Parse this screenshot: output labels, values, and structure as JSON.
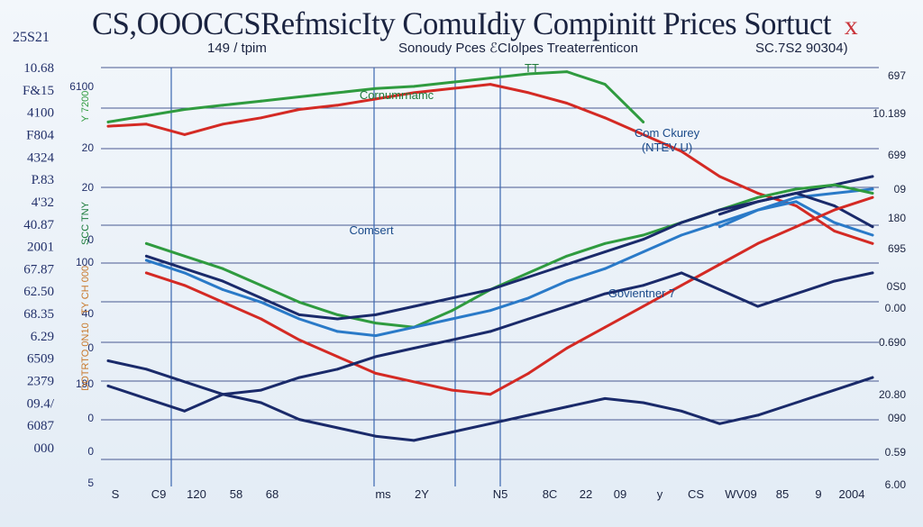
{
  "chart_data": {
    "type": "line",
    "title": "CS,OOOCCSRefmsicIty ComuIdiy Compinitt Prices Sortuct",
    "title_mark": "x",
    "subtitle_left": "149 / tpim",
    "subtitle_center": "Sonoudy Pces ℰCIolpes Treaterrenticon",
    "subtitle_right": "SC.7S2 90304)",
    "corner_label": "25S21",
    "left_ticks": [
      "10.68",
      "F&15",
      "4100",
      "F804",
      "4324",
      "P.83",
      "4'32",
      "40.87",
      "2001",
      "67.87",
      "62.50",
      "68.35",
      "6.29",
      "6509",
      "2379",
      "09.4/",
      "6087",
      "000"
    ],
    "inner_left_ticks": [
      "6100",
      "20",
      "20",
      "0",
      "100",
      "40",
      "0",
      "190",
      "0",
      "0",
      "5"
    ],
    "rotated_labels": [
      "Y 7200",
      "SCC TNY",
      "TY CH 000",
      "DOTRTO 0N10"
    ],
    "right_ticks": [
      "697",
      "10.189",
      "699",
      "09",
      "180",
      "695",
      "0S0",
      "0.00",
      "0.690",
      "20.80",
      "090",
      "0.59",
      "6.00"
    ],
    "bottom_ticks": [
      "S",
      "C9",
      "120",
      "58",
      "68",
      "ms",
      "2Y",
      "N5",
      "8C",
      "22",
      "09",
      "y",
      "CS",
      "WV09",
      "85",
      "9",
      "2004"
    ],
    "annotations": [
      {
        "text": "Cornumrnamc",
        "color": "green"
      },
      {
        "text": "Com Ckurey",
        "color": "blue"
      },
      {
        "text": "(NTEV U)",
        "color": "blue"
      },
      {
        "text": "Comsert",
        "color": "blue"
      },
      {
        "text": "Govientner 7",
        "color": "blue"
      },
      {
        "text": "TT",
        "color": "green"
      }
    ],
    "x": [
      0,
      5,
      10,
      15,
      20,
      25,
      30,
      35,
      40,
      45,
      50,
      55,
      60,
      65,
      70,
      75,
      80,
      85,
      90,
      95,
      100
    ],
    "y_range": [
      0,
      100
    ],
    "series": [
      {
        "name": "Green (upper)",
        "color": "#2f9b3f",
        "values": [
          87,
          88.5,
          90,
          91,
          92,
          93,
          94,
          95,
          95.5,
          96.5,
          97.5,
          98.5,
          99,
          96,
          87,
          null,
          null,
          null,
          null,
          null,
          null
        ]
      },
      {
        "name": "Red (upper)",
        "color": "#d42a24",
        "values": [
          86,
          86.5,
          84,
          86.5,
          88,
          90,
          91,
          92.5,
          94,
          95,
          96,
          94,
          91.5,
          88,
          84,
          80,
          74,
          70,
          67,
          61,
          58
        ]
      },
      {
        "name": "Navy (upper right)",
        "color": "#1a2a6a",
        "values": [
          null,
          null,
          null,
          null,
          null,
          null,
          null,
          null,
          null,
          null,
          null,
          null,
          null,
          null,
          null,
          null,
          65,
          68,
          70,
          72,
          74
        ]
      },
      {
        "name": "Light blue (upper right)",
        "color": "#2a7ac8",
        "values": [
          null,
          null,
          null,
          null,
          null,
          null,
          null,
          null,
          null,
          null,
          null,
          null,
          null,
          null,
          null,
          null,
          62,
          66,
          69,
          70,
          71
        ]
      },
      {
        "name": "Green (middle)",
        "color": "#2f9b3f",
        "values": [
          null,
          58,
          55,
          52,
          48,
          44,
          41,
          39,
          38,
          42,
          47,
          51,
          55,
          58,
          60,
          63,
          66,
          69,
          71,
          72,
          70
        ]
      },
      {
        "name": "Navy (middle)",
        "color": "#1a2a6a",
        "values": [
          null,
          55,
          52,
          49,
          45,
          41,
          40,
          41,
          43,
          45,
          47,
          50,
          53,
          56,
          59,
          63,
          66,
          68,
          70,
          67,
          62
        ]
      },
      {
        "name": "Blue (middle)",
        "color": "#2a7ac8",
        "values": [
          null,
          54,
          51,
          47,
          44,
          40,
          37,
          36,
          38,
          40,
          42,
          45,
          49,
          52,
          56,
          60,
          63,
          66,
          68,
          63,
          60
        ]
      },
      {
        "name": "Red (middle)",
        "color": "#d42a24",
        "values": [
          null,
          51,
          48,
          44,
          40,
          35,
          31,
          27,
          25,
          23,
          22,
          27,
          33,
          38,
          43,
          48,
          53,
          58,
          62,
          66,
          69
        ]
      },
      {
        "name": "Navy (lower)",
        "color": "#1a2a6a",
        "values": [
          30,
          28,
          25,
          22,
          23,
          26,
          28,
          31,
          33,
          35,
          37,
          40,
          43,
          46,
          48,
          51,
          47,
          43,
          46,
          49,
          51
        ]
      },
      {
        "name": "Navy (bottom)",
        "color": "#1a2a6a",
        "values": [
          24,
          21,
          18,
          22,
          20,
          16,
          14,
          12,
          11,
          13,
          15,
          17,
          19,
          21,
          20,
          18,
          15,
          17,
          20,
          23,
          26
        ]
      }
    ]
  }
}
